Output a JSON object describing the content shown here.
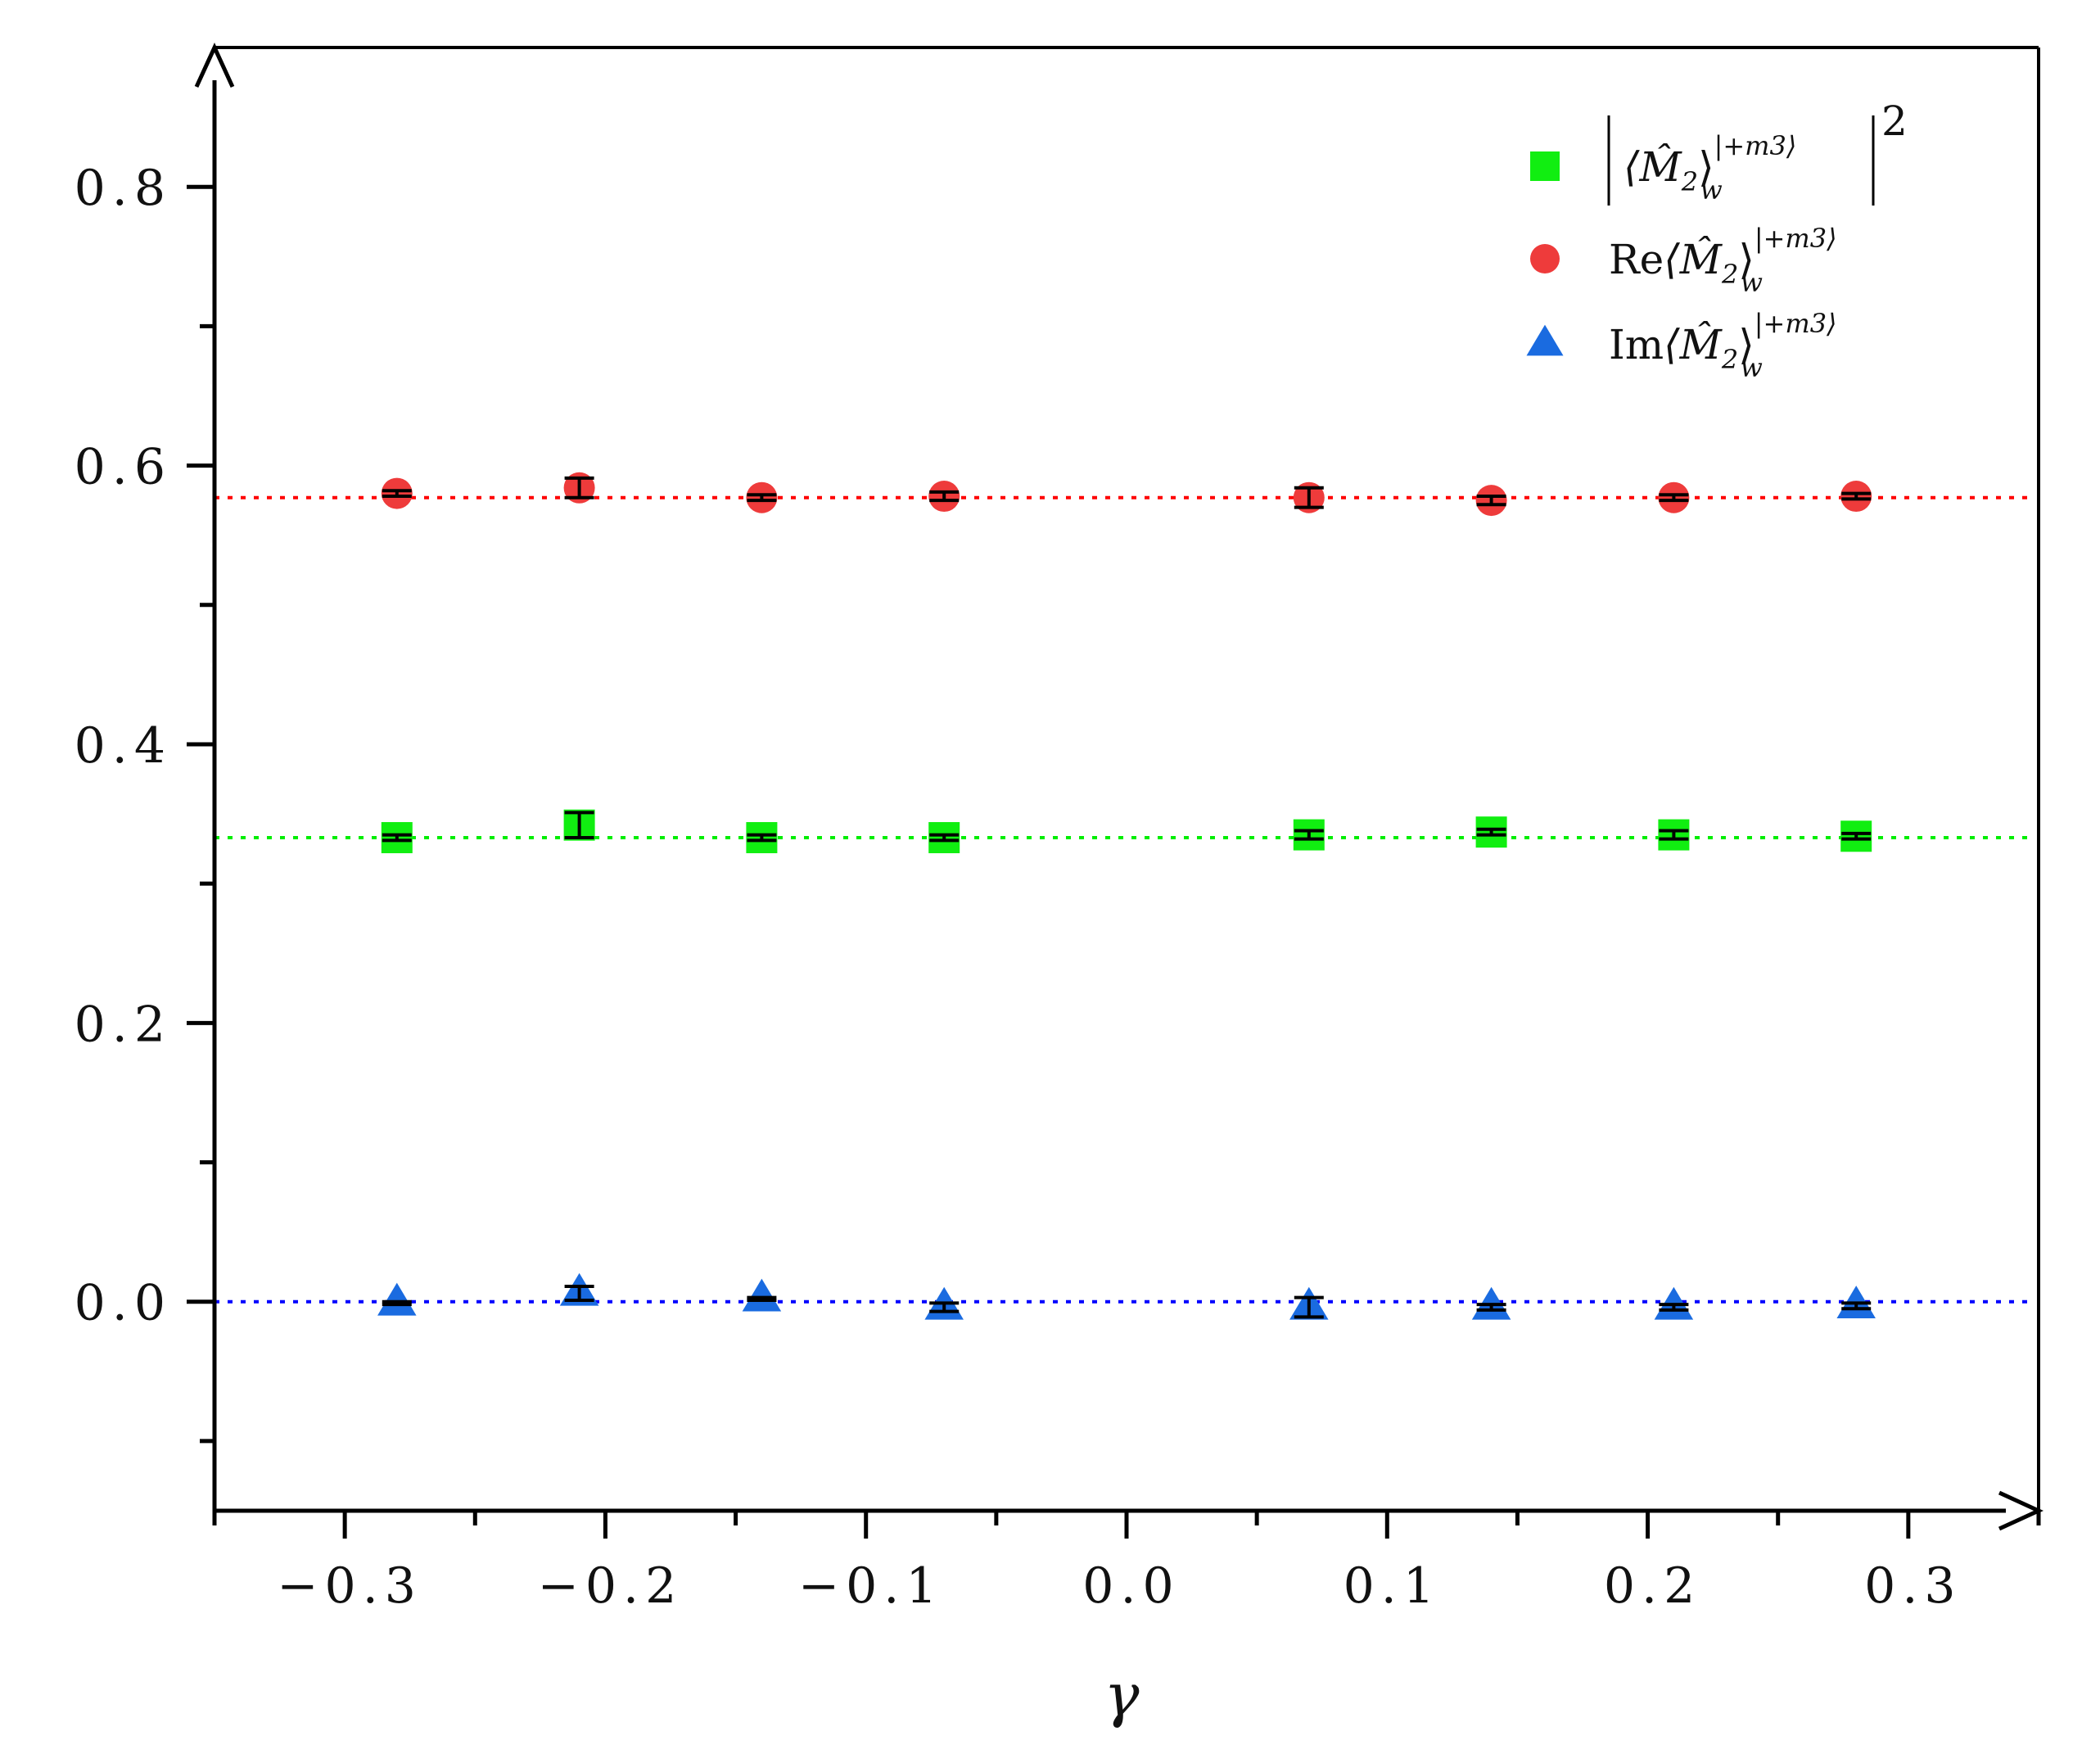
{
  "chart_data": {
    "type": "scatter",
    "xlabel": "γ",
    "ylabel": "",
    "xlim": [
      -0.35,
      0.35
    ],
    "ylim": [
      -0.15,
      0.9
    ],
    "x_ticks": [
      -0.3,
      -0.2,
      -0.1,
      0.0,
      0.1,
      0.2,
      0.3
    ],
    "x_tick_labels": [
      "−0.3",
      "−0.2",
      "−0.1",
      "0.0",
      "0.1",
      "0.2",
      "0.3"
    ],
    "y_ticks": [
      0.0,
      0.2,
      0.4,
      0.6,
      0.8
    ],
    "y_tick_labels": [
      "0.0",
      "0.2",
      "0.4",
      "0.6",
      "0.8"
    ],
    "grid": false,
    "legend_position": "top-right",
    "reference_lines": [
      {
        "y": 0.577,
        "color": "#ff0000",
        "style": "dotted"
      },
      {
        "y": 0.333,
        "color": "#00ee00",
        "style": "dotted"
      },
      {
        "y": 0.0,
        "color": "#0000ff",
        "style": "dotted"
      }
    ],
    "series": [
      {
        "name": "|⟨M̂₂⟩_w^{|+m₃⟩}|²",
        "marker": "square",
        "color": "#11ee11",
        "x": [
          -0.28,
          -0.21,
          -0.14,
          -0.07,
          0.07,
          0.14,
          0.21,
          0.28
        ],
        "y": [
          0.333,
          0.342,
          0.333,
          0.333,
          0.335,
          0.337,
          0.335,
          0.334
        ],
        "yerr": [
          0.002,
          0.009,
          0.002,
          0.002,
          0.003,
          0.002,
          0.003,
          0.002
        ]
      },
      {
        "name": "Re⟨M̂₂⟩_w^{|+m₃⟩}",
        "marker": "circle",
        "color": "#ee3b3b",
        "x": [
          -0.28,
          -0.21,
          -0.14,
          -0.07,
          0.07,
          0.14,
          0.21,
          0.28
        ],
        "y": [
          0.58,
          0.584,
          0.577,
          0.578,
          0.577,
          0.575,
          0.577,
          0.578
        ],
        "yerr": [
          0.002,
          0.007,
          0.002,
          0.003,
          0.007,
          0.003,
          0.002,
          0.002
        ]
      },
      {
        "name": "Im⟨M̂₂⟩_w^{|+m₃⟩}",
        "marker": "triangle",
        "color": "#1a6be0",
        "x": [
          -0.28,
          -0.21,
          -0.14,
          -0.07,
          0.07,
          0.14,
          0.21,
          0.28
        ],
        "y": [
          -0.001,
          0.006,
          0.002,
          -0.004,
          -0.004,
          -0.004,
          -0.004,
          -0.003
        ],
        "yerr": [
          0.001,
          0.005,
          0.001,
          0.003,
          0.007,
          0.002,
          0.002,
          0.002
        ]
      }
    ]
  },
  "legend": {
    "entries": [
      {
        "prefix": "",
        "M": "⟨M̂",
        "two": "2",
        "close": "⟩",
        "sup": "|+m3⟩",
        "sub": "w",
        "power": "2",
        "abs": true
      },
      {
        "prefix": "Re",
        "M": "⟨M̂",
        "two": "2",
        "close": "⟩",
        "sup": "|+m3⟩",
        "sub": "w",
        "power": "",
        "abs": false
      },
      {
        "prefix": "Im",
        "M": "⟨M̂",
        "two": "2",
        "close": "⟩",
        "sup": "|+m3⟩",
        "sub": "w",
        "power": "",
        "abs": false
      }
    ]
  }
}
